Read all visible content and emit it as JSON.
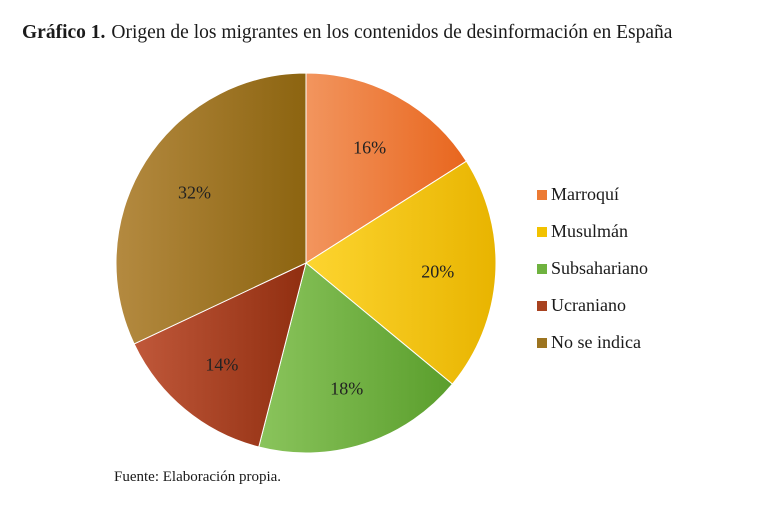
{
  "title": {
    "label": "Gráfico 1.",
    "text": "Origen de los migrantes en los contenidos de desinformación en España"
  },
  "source": "Fuente: Elaboración propia.",
  "chart_data": {
    "type": "pie",
    "title": "Origen de los migrantes en los contenidos de desinformación en España",
    "legend_position": "right",
    "categories": [
      "Marroquí",
      "Musulmán",
      "Subsahariano",
      "Ucraniano",
      "No se indica"
    ],
    "values": [
      16,
      20,
      18,
      14,
      32
    ],
    "value_labels": [
      "16%",
      "20%",
      "18%",
      "14%",
      "32%"
    ],
    "colors": [
      [
        "#f2955e",
        "#e8661e"
      ],
      [
        "#fdd530",
        "#e8b400"
      ],
      [
        "#8ac45c",
        "#5a9e2c"
      ],
      [
        "#c0583a",
        "#902e10"
      ],
      [
        "#b48a40",
        "#8c6410"
      ]
    ],
    "legend_colors": [
      "#ec7a34",
      "#f2c200",
      "#6fb23f",
      "#a84220",
      "#9c7420"
    ]
  }
}
